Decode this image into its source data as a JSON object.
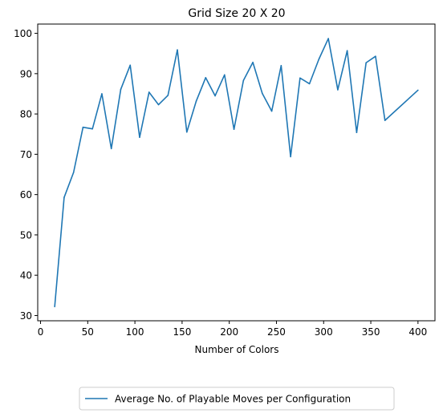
{
  "chart_data": {
    "type": "line",
    "title": "Grid Size 20 X 20",
    "xlabel": "Number of Colors",
    "ylabel": "",
    "xlim": [
      -3,
      418
    ],
    "ylim": [
      28.7,
      102.3
    ],
    "xticks": [
      0,
      50,
      100,
      150,
      200,
      250,
      300,
      350,
      400
    ],
    "yticks": [
      30,
      40,
      50,
      60,
      70,
      80,
      90,
      100
    ],
    "grid": false,
    "legend_position": "bottom-center",
    "series": [
      {
        "name": "Average No. of Playable Moves per Configuration",
        "color": "#1f77b4",
        "x": [
          15,
          25,
          35,
          45,
          55,
          65,
          75,
          85,
          95,
          105,
          115,
          125,
          135,
          145,
          155,
          165,
          175,
          185,
          195,
          205,
          215,
          225,
          235,
          245,
          255,
          265,
          275,
          285,
          295,
          305,
          315,
          325,
          335,
          345,
          355,
          365,
          400
        ],
        "y": [
          32.2,
          59.3,
          65.5,
          76.7,
          76.3,
          85.0,
          71.4,
          86.1,
          92.1,
          74.2,
          85.4,
          82.3,
          84.6,
          95.9,
          75.5,
          83.2,
          89.0,
          84.5,
          89.7,
          76.2,
          88.3,
          92.8,
          85.1,
          80.7,
          92.0,
          69.4,
          88.9,
          87.5,
          93.6,
          98.7,
          86.0,
          95.7,
          75.4,
          92.7,
          94.3,
          78.4,
          85.9
        ]
      }
    ]
  }
}
